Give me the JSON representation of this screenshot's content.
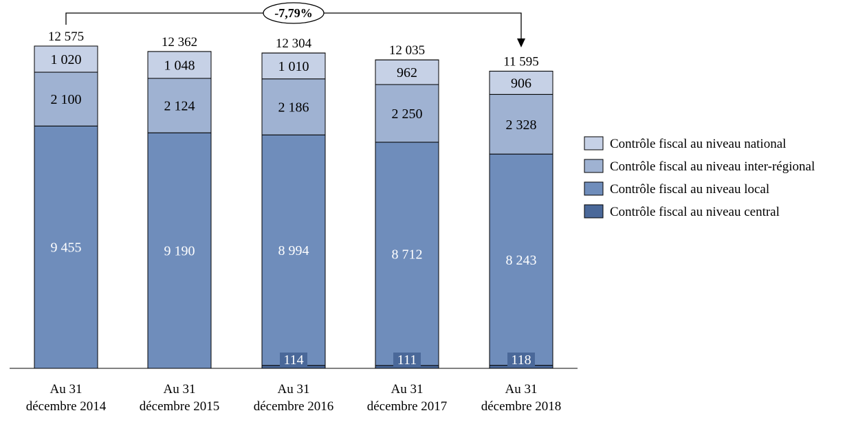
{
  "chart_data": {
    "type": "bar",
    "stacked": true,
    "categories": [
      [
        "Au 31",
        "décembre 2014"
      ],
      [
        "Au 31",
        "décembre 2015"
      ],
      [
        "Au 31",
        "décembre 2016"
      ],
      [
        "Au 31",
        "décembre 2017"
      ],
      [
        "Au 31",
        "décembre 2018"
      ]
    ],
    "series": [
      {
        "name": "Contrôle fiscal au niveau central",
        "color": "#4a6899",
        "values": [
          0,
          0,
          114,
          111,
          118
        ],
        "labels": [
          "",
          "",
          "114",
          "111",
          "118"
        ]
      },
      {
        "name": "Contrôle fiscal au niveau local",
        "color": "#6f8dbb",
        "values": [
          9455,
          9190,
          8994,
          8712,
          8243
        ],
        "labels": [
          "9 455",
          "9 190",
          "8 994",
          "8 712",
          "8 243"
        ]
      },
      {
        "name": "Contrôle fiscal au niveau inter-régional",
        "color": "#9fb2d2",
        "values": [
          2100,
          2124,
          2186,
          2250,
          2328
        ],
        "labels": [
          "2 100",
          "2 124",
          "2 186",
          "2 250",
          "2 328"
        ]
      },
      {
        "name": "Contrôle fiscal au niveau national",
        "color": "#c6d1e6",
        "values": [
          1020,
          1048,
          1010,
          962,
          906
        ],
        "labels": [
          "1 020",
          "1 048",
          "1 010",
          "962",
          "906"
        ]
      }
    ],
    "totals": [
      12575,
      12362,
      12304,
      12035,
      11595
    ],
    "total_labels": [
      "12 575",
      "12 362",
      "12 304",
      "12 035",
      "11 595"
    ],
    "legend_order": [
      3,
      2,
      1,
      0
    ],
    "legend_position": "right",
    "ylim": [
      0,
      12575
    ],
    "grid": false,
    "annotation": {
      "text": "-7,79%",
      "from_category": 0,
      "to_category": 4
    }
  }
}
